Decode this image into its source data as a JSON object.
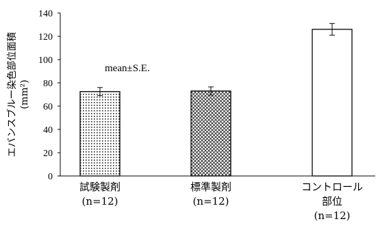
{
  "chart_data": {
    "type": "bar",
    "categories": [
      [
        "試験製剤",
        "(n=12)"
      ],
      [
        "標準製剤",
        "(n=12)"
      ],
      [
        "コントロール",
        "部位",
        "(n=12)"
      ]
    ],
    "values": [
      72.5,
      73.0,
      126.0
    ],
    "errors": [
      3.5,
      3.5,
      5.0
    ],
    "fills": [
      "dots",
      "crosshatch",
      "none"
    ],
    "ylabel": "エバンスブルー染色部位面積",
    "ylabel_unit": "(mm²)",
    "annotation": "mean±S.E.",
    "ylim": [
      0,
      140
    ],
    "yticks": [
      0,
      20,
      40,
      60,
      80,
      100,
      120,
      140
    ],
    "grid": false
  }
}
